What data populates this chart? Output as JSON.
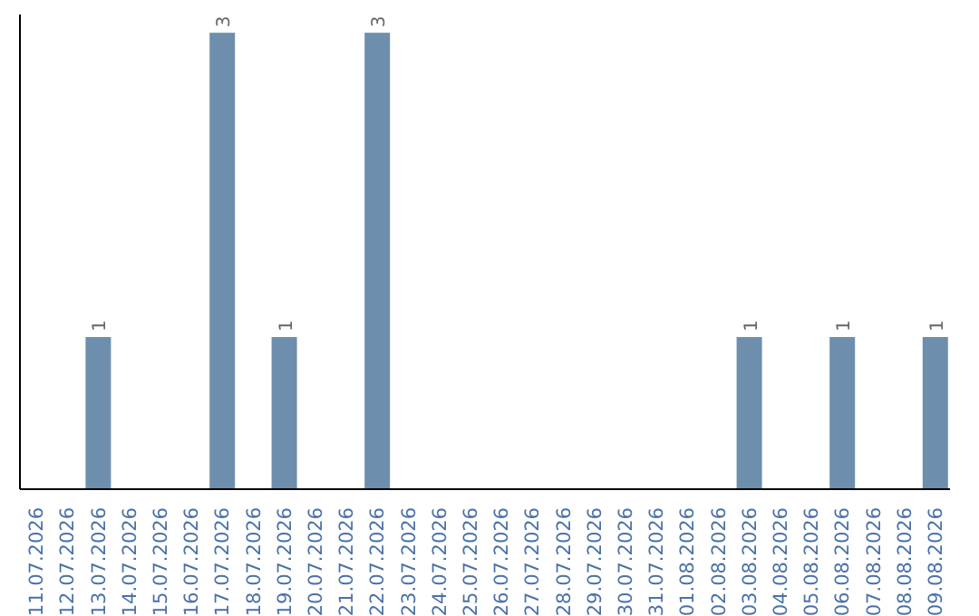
{
  "chart_data": {
    "type": "bar",
    "categories": [
      "11.07.2026",
      "12.07.2026",
      "13.07.2026",
      "14.07.2026",
      "15.07.2026",
      "16.07.2026",
      "17.07.2026",
      "18.07.2026",
      "19.07.2026",
      "20.07.2026",
      "21.07.2026",
      "22.07.2026",
      "23.07.2026",
      "24.07.2026",
      "25.07.2026",
      "26.07.2026",
      "27.07.2026",
      "28.07.2026",
      "29.07.2026",
      "30.07.2026",
      "31.07.2026",
      "01.08.2026",
      "02.08.2026",
      "03.08.2026",
      "04.08.2026",
      "05.08.2026",
      "06.08.2026",
      "07.08.2026",
      "08.08.2026",
      "09.08.2026"
    ],
    "values": [
      0,
      0,
      1,
      0,
      0,
      0,
      3,
      0,
      1,
      0,
      0,
      3,
      0,
      0,
      0,
      0,
      0,
      0,
      0,
      0,
      0,
      0,
      0,
      1,
      0,
      0,
      1,
      0,
      0,
      1
    ],
    "value_labels": [
      null,
      null,
      "1",
      null,
      null,
      null,
      "3",
      null,
      "1",
      null,
      null,
      "3",
      null,
      null,
      null,
      null,
      null,
      null,
      null,
      null,
      null,
      null,
      null,
      "1",
      null,
      null,
      "1",
      null,
      null,
      "1"
    ],
    "color": "#6d8fad",
    "grid": false,
    "tick_labels": "x"
  }
}
